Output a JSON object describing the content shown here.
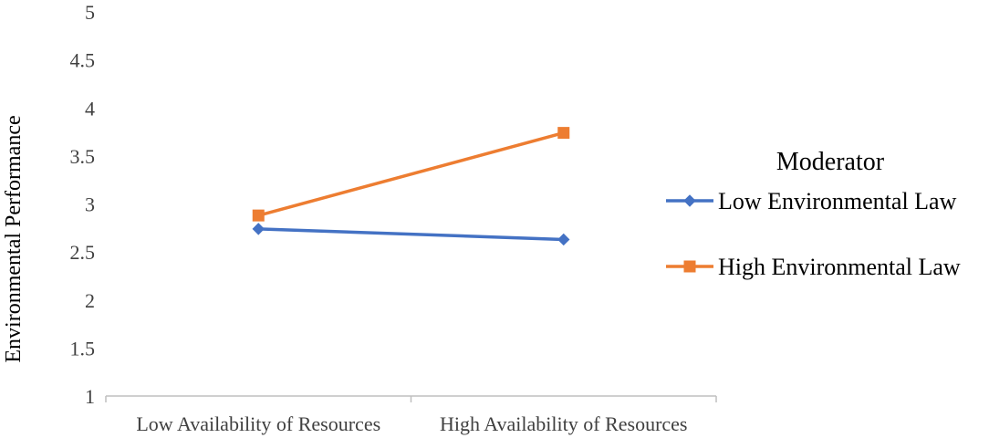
{
  "chart_data": {
    "type": "line",
    "categories": [
      "Low Availability of Resources",
      "High Availability of Resources"
    ],
    "series": [
      {
        "name": "Low Environmental Law",
        "values": [
          2.74,
          2.63
        ],
        "color": "#4472c4",
        "marker": "diamond"
      },
      {
        "name": "High Environmental Law",
        "values": [
          2.88,
          3.74
        ],
        "color": "#ed7d31",
        "marker": "square"
      }
    ],
    "title": "",
    "xlabel": "",
    "ylabel": "Environmental Performance",
    "ylim": [
      1,
      5
    ],
    "yticks": [
      "1",
      "1.5",
      "2",
      "2.5",
      "3",
      "3.5",
      "4",
      "4.5",
      "5"
    ],
    "grid": false,
    "legend": {
      "title": "Moderator",
      "position": "right"
    }
  }
}
